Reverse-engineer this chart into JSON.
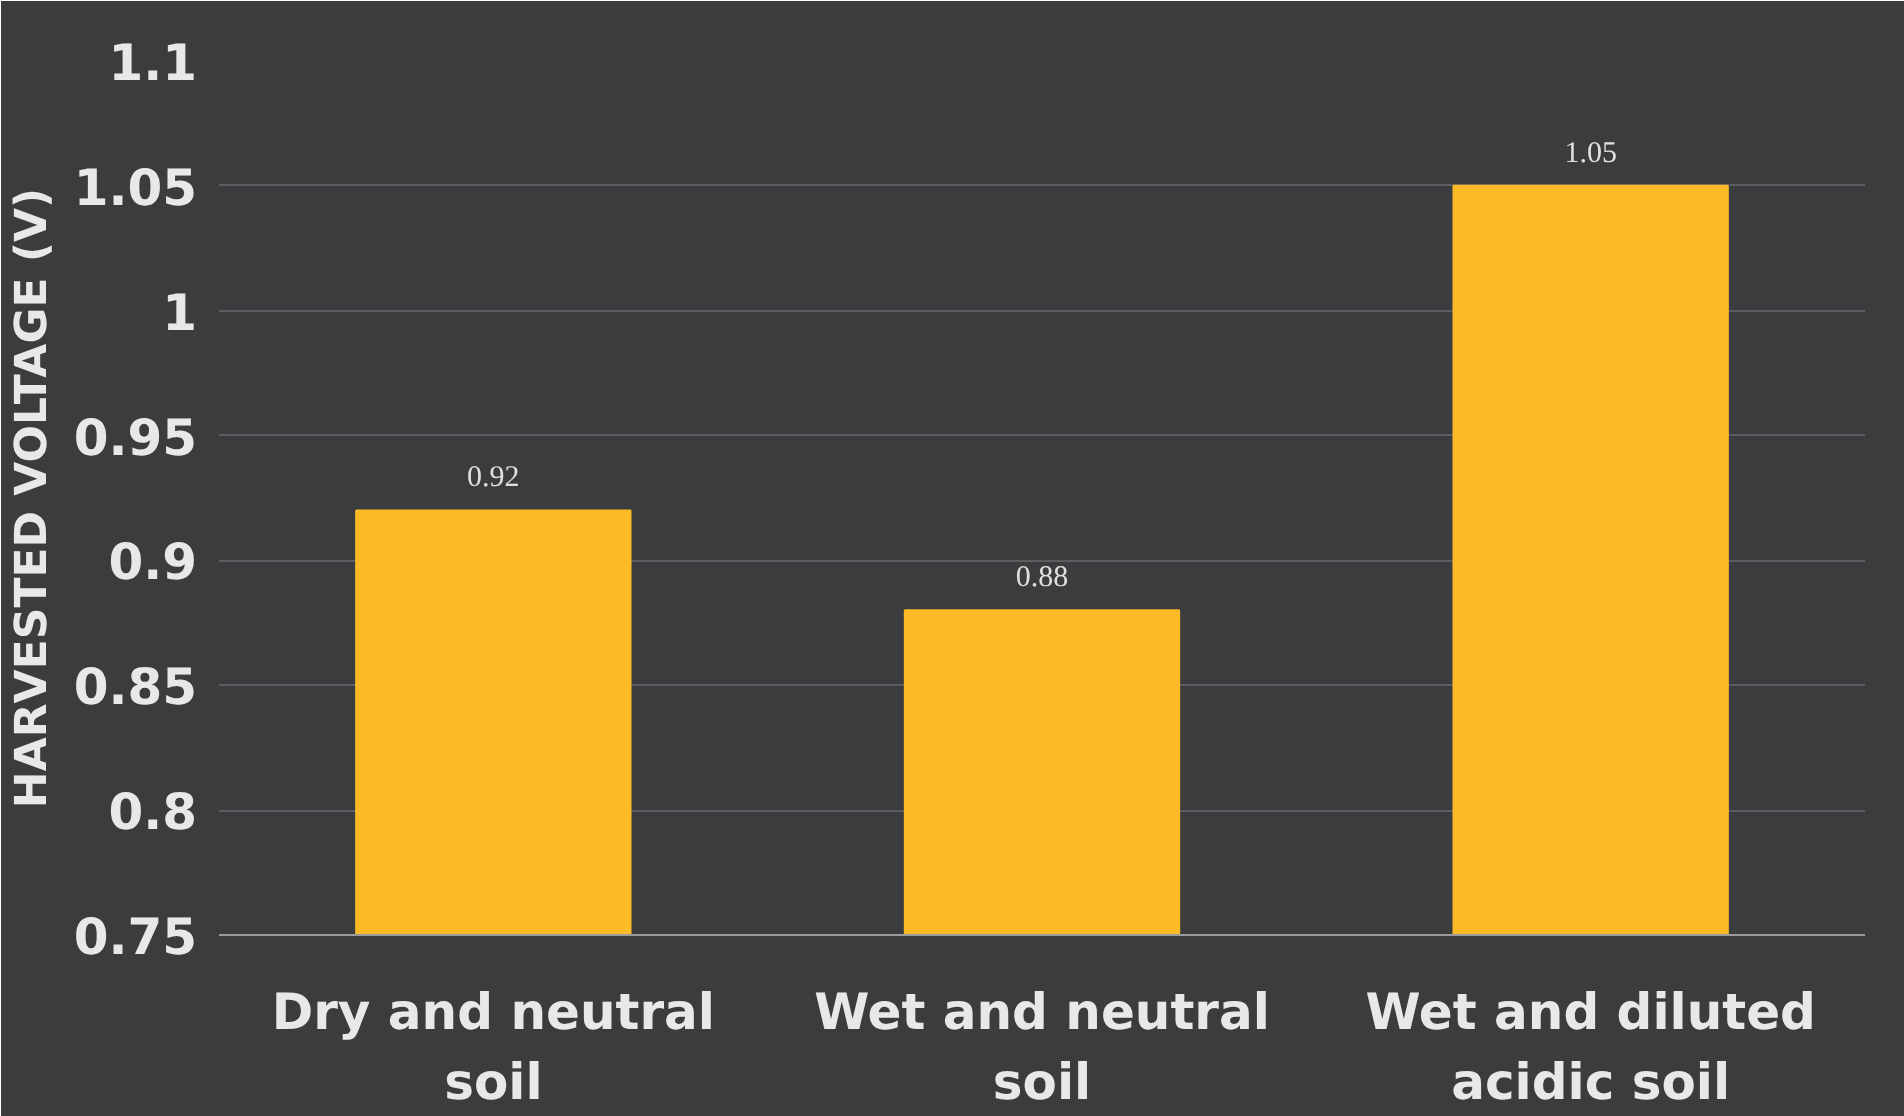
{
  "chart_data": {
    "type": "bar",
    "ylabel": "HARVESTED VOLTAGE (V)",
    "categories": [
      "Dry and neutral soil",
      "Wet and neutral soil",
      "Wet and diluted acidic soil"
    ],
    "values": [
      0.92,
      0.88,
      1.05
    ],
    "color": "#fbba26",
    "ylim": [
      0.75,
      1.1
    ],
    "yticks": [
      {
        "value": 0.75,
        "label": "0.75"
      },
      {
        "value": 0.8,
        "label": "0.8"
      },
      {
        "value": 0.85,
        "label": "0.85"
      },
      {
        "value": 0.9,
        "label": "0.9"
      },
      {
        "value": 0.95,
        "label": "0.95"
      },
      {
        "value": 1,
        "label": "1"
      },
      {
        "value": 1.05,
        "label": "1.05"
      },
      {
        "value": 1.1,
        "label": "1.1"
      }
    ],
    "grid": "y",
    "data_labels": true
  }
}
